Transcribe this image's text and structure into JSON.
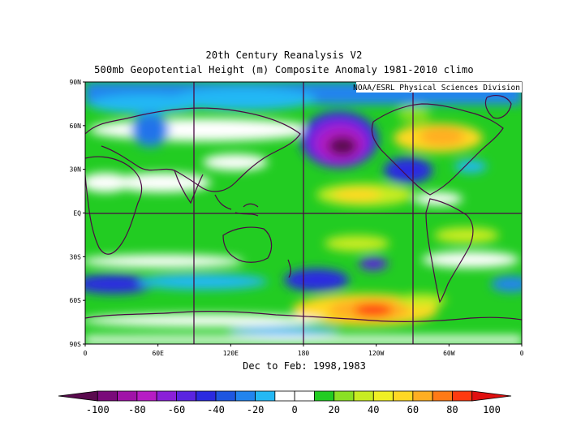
{
  "title_line1": "20th Century Reanalysis V2",
  "title_line2": "500mb Geopotential Height (m) Composite Anomaly 1981-2010 climo",
  "credit": "NOAA/ESRL Physical Sciences Division",
  "subtitle": "Dec to Feb: 1998,1983",
  "lat_ticks": [
    "90N",
    "60N",
    "30N",
    "EQ",
    "30S",
    "60S",
    "90S"
  ],
  "lon_ticks": [
    "0",
    "60E",
    "120E",
    "180",
    "120W",
    "60W",
    "0"
  ],
  "colorbar": {
    "labels": [
      "-100",
      "-80",
      "-60",
      "-40",
      "-20",
      "0",
      "20",
      "40",
      "60",
      "80",
      "100"
    ],
    "colors": [
      "#5a0a4e",
      "#7a0a7a",
      "#a012a8",
      "#b61cc4",
      "#8a20d8",
      "#5a24e0",
      "#2a2ae0",
      "#1e56e0",
      "#2284ee",
      "#24b8f4",
      "#ffffff",
      "#ffffff",
      "#22cc22",
      "#8ae024",
      "#c8ec22",
      "#f0f024",
      "#ffd824",
      "#ffae22",
      "#ff7a16",
      "#ff3a10",
      "#e01010"
    ]
  },
  "colors": {
    "ocean_neutral": "#ffffff",
    "land_outline": "#4a0a44",
    "frame": "#000000"
  }
}
